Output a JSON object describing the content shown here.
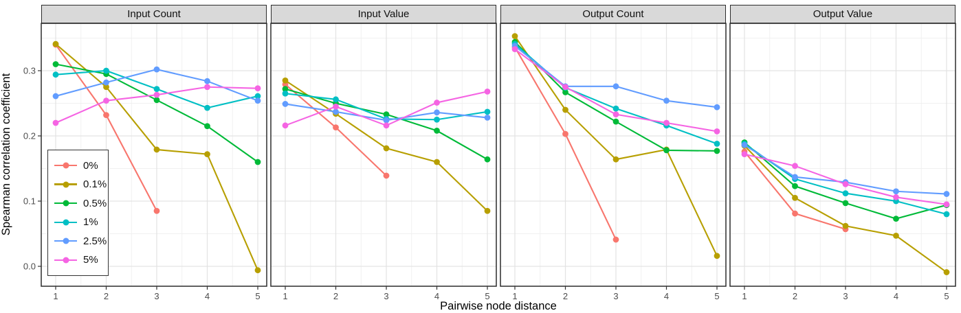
{
  "chart_data": {
    "type": "line",
    "xlabel": "Pairwise node distance",
    "ylabel": "Spearman correlation coefficient",
    "x": [
      1,
      2,
      3,
      4,
      5
    ],
    "x_tick_labels": [
      "1",
      "2",
      "3",
      "4",
      "5"
    ],
    "y_tick_labels": [
      "0.0",
      "0.1",
      "0.2",
      "0.3"
    ],
    "y_tick_values": [
      0.0,
      0.1,
      0.2,
      0.3
    ],
    "y_minor_gridlines": [
      0.05,
      0.15,
      0.25,
      0.35
    ],
    "x_minor_gridlines": [
      1.5,
      2.5,
      3.5,
      4.5
    ],
    "ylim": [
      -0.03,
      0.375
    ],
    "grid": "major+minor",
    "legend_position": "inside top-left of first panel",
    "legend": [
      {
        "label": "0%",
        "color": "#F8766D"
      },
      {
        "label": "0.1%",
        "color": "#B79F00"
      },
      {
        "label": "0.5%",
        "color": "#00BA38"
      },
      {
        "label": "1%",
        "color": "#00BFC4"
      },
      {
        "label": "2.5%",
        "color": "#619CFF"
      },
      {
        "label": "5%",
        "color": "#F564E3"
      }
    ],
    "facets": [
      {
        "label": "Input Count",
        "series": [
          {
            "name": "0%",
            "color": "#F8766D",
            "values": [
              0.34,
              0.232,
              0.085,
              null,
              null
            ]
          },
          {
            "name": "0.1%",
            "color": "#B79F00",
            "values": [
              0.341,
              0.275,
              0.179,
              0.172,
              -0.006
            ]
          },
          {
            "name": "0.5%",
            "color": "#00BA38",
            "values": [
              0.31,
              0.295,
              0.255,
              0.215,
              0.16
            ]
          },
          {
            "name": "1%",
            "color": "#00BFC4",
            "values": [
              0.294,
              0.3,
              0.272,
              0.243,
              0.261
            ]
          },
          {
            "name": "2.5%",
            "color": "#619CFF",
            "values": [
              0.261,
              0.282,
              0.302,
              0.284,
              0.254
            ]
          },
          {
            "name": "5%",
            "color": "#F564E3",
            "values": [
              0.22,
              0.254,
              0.263,
              0.275,
              0.273
            ]
          }
        ]
      },
      {
        "label": "Input Value",
        "series": [
          {
            "name": "0%",
            "color": "#F8766D",
            "values": [
              0.279,
              0.213,
              0.139,
              null,
              null
            ]
          },
          {
            "name": "0.1%",
            "color": "#B79F00",
            "values": [
              0.285,
              0.234,
              0.181,
              0.16,
              0.085
            ]
          },
          {
            "name": "0.5%",
            "color": "#00BA38",
            "values": [
              0.272,
              0.25,
              0.233,
              0.208,
              0.164
            ]
          },
          {
            "name": "1%",
            "color": "#00BFC4",
            "values": [
              0.265,
              0.256,
              0.226,
              0.225,
              0.237
            ]
          },
          {
            "name": "2.5%",
            "color": "#619CFF",
            "values": [
              0.249,
              0.237,
              0.224,
              0.236,
              0.228
            ]
          },
          {
            "name": "5%",
            "color": "#F564E3",
            "values": [
              0.216,
              0.245,
              0.216,
              0.251,
              0.268
            ]
          }
        ]
      },
      {
        "label": "Output Count",
        "series": [
          {
            "name": "0%",
            "color": "#F8766D",
            "values": [
              0.336,
              0.203,
              0.041,
              null,
              null
            ]
          },
          {
            "name": "0.1%",
            "color": "#B79F00",
            "values": [
              0.353,
              0.24,
              0.164,
              0.179,
              0.016
            ]
          },
          {
            "name": "0.5%",
            "color": "#00BA38",
            "values": [
              0.344,
              0.267,
              0.222,
              0.178,
              0.177
            ]
          },
          {
            "name": "1%",
            "color": "#00BFC4",
            "values": [
              0.341,
              0.274,
              0.242,
              0.216,
              0.188
            ]
          },
          {
            "name": "2.5%",
            "color": "#619CFF",
            "values": [
              0.338,
              0.276,
              0.276,
              0.254,
              0.244
            ]
          },
          {
            "name": "5%",
            "color": "#F564E3",
            "values": [
              0.333,
              0.275,
              0.233,
              0.22,
              0.207
            ]
          }
        ]
      },
      {
        "label": "Output Value",
        "series": [
          {
            "name": "0%",
            "color": "#F8766D",
            "values": [
              0.176,
              0.081,
              0.057,
              null,
              null
            ]
          },
          {
            "name": "0.1%",
            "color": "#B79F00",
            "values": [
              0.185,
              0.105,
              0.062,
              0.047,
              -0.009
            ]
          },
          {
            "name": "0.5%",
            "color": "#00BA38",
            "values": [
              0.19,
              0.123,
              0.097,
              0.073,
              0.094
            ]
          },
          {
            "name": "1%",
            "color": "#00BFC4",
            "values": [
              0.188,
              0.134,
              0.112,
              0.1,
              0.08
            ]
          },
          {
            "name": "2.5%",
            "color": "#619CFF",
            "values": [
              0.186,
              0.137,
              0.129,
              0.115,
              0.111
            ]
          },
          {
            "name": "5%",
            "color": "#F564E3",
            "values": [
              0.172,
              0.154,
              0.126,
              0.106,
              0.095
            ]
          }
        ]
      }
    ],
    "style": {
      "panel_background": "#FFFFFF",
      "panel_border": "#2B2B2B",
      "strip_background": "#D9D9D9",
      "major_grid": "#E3E3E3",
      "minor_grid": "#F0F0F0",
      "tick_color": "#333333",
      "tick_label_color": "#4D4D4D"
    }
  }
}
